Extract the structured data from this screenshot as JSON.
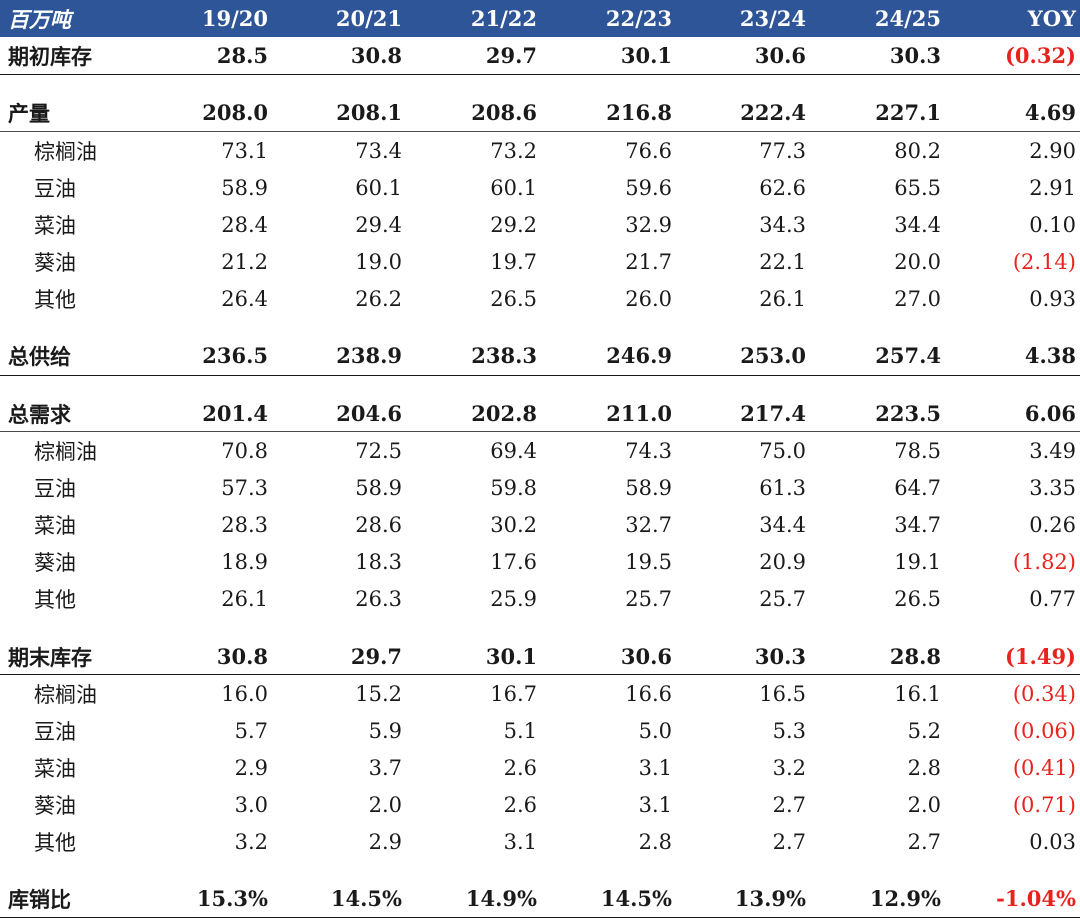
{
  "table": {
    "header": {
      "unit": "百万吨",
      "years": [
        "19/20",
        "20/21",
        "21/22",
        "22/23",
        "23/24",
        "24/25"
      ],
      "yoy": "YOY"
    },
    "rows": [
      {
        "label": "期初库存",
        "values": [
          "28.5",
          "30.8",
          "29.7",
          "30.1",
          "30.6",
          "30.3"
        ],
        "yoy": "(0.32)",
        "bold": true,
        "negative": true
      },
      {
        "label": "产量",
        "values": [
          "208.0",
          "208.1",
          "208.6",
          "216.8",
          "222.4",
          "227.1"
        ],
        "yoy": "4.69",
        "bold": true
      },
      {
        "label": "棕榈油",
        "values": [
          "73.1",
          "73.4",
          "73.2",
          "76.6",
          "77.3",
          "80.2"
        ],
        "yoy": "2.90"
      },
      {
        "label": "豆油",
        "values": [
          "58.9",
          "60.1",
          "60.1",
          "59.6",
          "62.6",
          "65.5"
        ],
        "yoy": "2.91"
      },
      {
        "label": "菜油",
        "values": [
          "28.4",
          "29.4",
          "29.2",
          "32.9",
          "34.3",
          "34.4"
        ],
        "yoy": "0.10"
      },
      {
        "label": "葵油",
        "values": [
          "21.2",
          "19.0",
          "19.7",
          "21.7",
          "22.1",
          "20.0"
        ],
        "yoy": "(2.14)",
        "negative": true
      },
      {
        "label": "其他",
        "values": [
          "26.4",
          "26.2",
          "26.5",
          "26.0",
          "26.1",
          "27.0"
        ],
        "yoy": "0.93"
      },
      {
        "label": "总供给",
        "values": [
          "236.5",
          "238.9",
          "238.3",
          "246.9",
          "253.0",
          "257.4"
        ],
        "yoy": "4.38",
        "bold": true
      },
      {
        "label": "总需求",
        "values": [
          "201.4",
          "204.6",
          "202.8",
          "211.0",
          "217.4",
          "223.5"
        ],
        "yoy": "6.06",
        "bold": true
      },
      {
        "label": "棕榈油",
        "values": [
          "70.8",
          "72.5",
          "69.4",
          "74.3",
          "75.0",
          "78.5"
        ],
        "yoy": "3.49"
      },
      {
        "label": "豆油",
        "values": [
          "57.3",
          "58.9",
          "59.8",
          "58.9",
          "61.3",
          "64.7"
        ],
        "yoy": "3.35"
      },
      {
        "label": "菜油",
        "values": [
          "28.3",
          "28.6",
          "30.2",
          "32.7",
          "34.4",
          "34.7"
        ],
        "yoy": "0.26"
      },
      {
        "label": "葵油",
        "values": [
          "18.9",
          "18.3",
          "17.6",
          "19.5",
          "20.9",
          "19.1"
        ],
        "yoy": "(1.82)",
        "negative": true
      },
      {
        "label": "其他",
        "values": [
          "26.1",
          "26.3",
          "25.9",
          "25.7",
          "25.7",
          "26.5"
        ],
        "yoy": "0.77"
      },
      {
        "label": "期末库存",
        "values": [
          "30.8",
          "29.7",
          "30.1",
          "30.6",
          "30.3",
          "28.8"
        ],
        "yoy": "(1.49)",
        "bold": true,
        "negative": true
      },
      {
        "label": "棕榈油",
        "values": [
          "16.0",
          "15.2",
          "16.7",
          "16.6",
          "16.5",
          "16.1"
        ],
        "yoy": "(0.34)",
        "negative": true
      },
      {
        "label": "豆油",
        "values": [
          "5.7",
          "5.9",
          "5.1",
          "5.0",
          "5.3",
          "5.2"
        ],
        "yoy": "(0.06)",
        "negative": true
      },
      {
        "label": "菜油",
        "values": [
          "2.9",
          "3.7",
          "2.6",
          "3.1",
          "3.2",
          "2.8"
        ],
        "yoy": "(0.41)",
        "negative": true
      },
      {
        "label": "葵油",
        "values": [
          "3.0",
          "2.0",
          "2.6",
          "3.1",
          "2.7",
          "2.0"
        ],
        "yoy": "(0.71)",
        "negative": true
      },
      {
        "label": "其他",
        "values": [
          "3.2",
          "2.9",
          "3.1",
          "2.8",
          "2.7",
          "2.7"
        ],
        "yoy": "0.03"
      },
      {
        "label": "库销比",
        "values": [
          "15.3%",
          "14.5%",
          "14.9%",
          "14.5%",
          "13.9%",
          "12.9%"
        ],
        "yoy": "-1.04%",
        "bold": true,
        "negative": true
      }
    ]
  },
  "colors": {
    "header_bg": "#2e5597",
    "negative": "#e8231e",
    "text": "#1a1a1a"
  }
}
